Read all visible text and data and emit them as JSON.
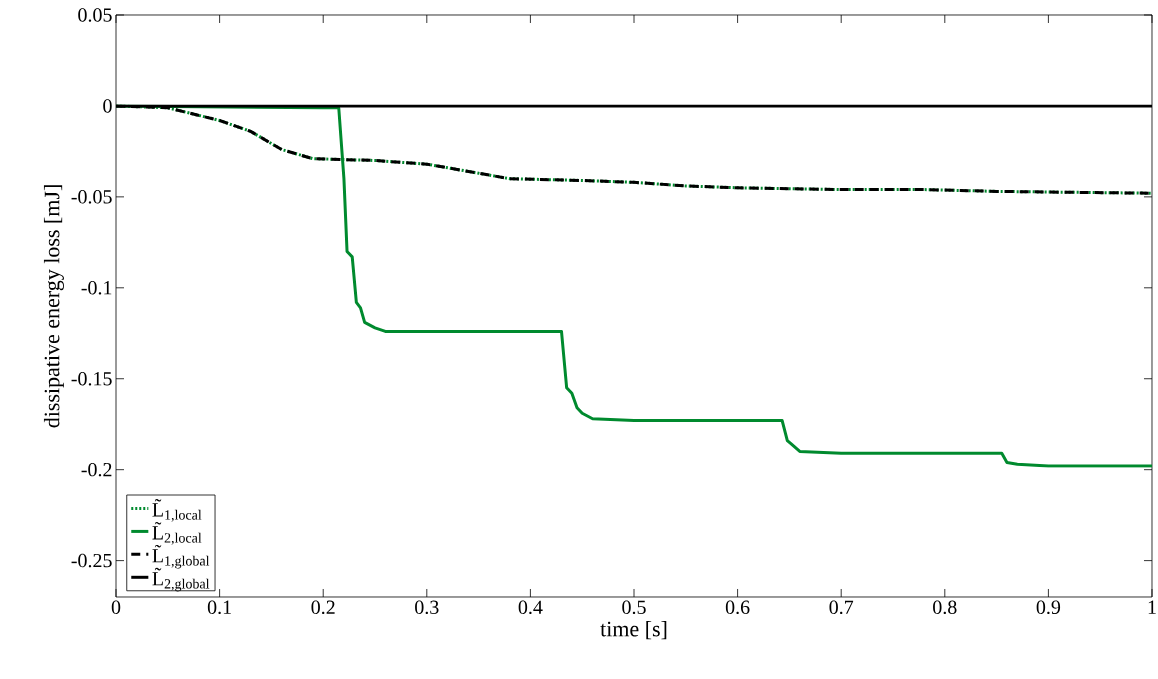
{
  "chart_data": {
    "type": "line",
    "xlabel": "time [s]",
    "ylabel": "dissipative energy loss [mJ]",
    "xlim": [
      0,
      1
    ],
    "ylim": [
      -0.27,
      0.05
    ],
    "xticks": [
      0,
      0.1,
      0.2,
      0.3,
      0.4,
      0.5,
      0.6,
      0.7,
      0.8,
      0.9,
      1
    ],
    "yticks": [
      {
        "value": -0.25,
        "label": "-0.25"
      },
      {
        "value": -0.2,
        "label": "-0.2"
      },
      {
        "value": -0.15,
        "label": "-0.15"
      },
      {
        "value": -0.1,
        "label": "-0.1"
      },
      {
        "value": -0.05,
        "label": "-0.05"
      },
      0,
      0.05
    ],
    "grid": false,
    "legend": "bottom left",
    "series": [
      {
        "name": "L̃$_{1,local}$",
        "color": "#008a2e",
        "line_style": "dotted",
        "x": [
          0,
          0.05,
          0.1,
          0.13,
          0.16,
          0.19,
          0.25,
          0.3,
          0.35,
          0.38,
          0.45,
          0.5,
          0.55,
          0.6,
          0.7,
          0.78,
          0.85,
          1
        ],
        "values": [
          0,
          -0.001,
          -0.008,
          -0.014,
          -0.024,
          -0.029,
          -0.03,
          -0.032,
          -0.037,
          -0.04,
          -0.041,
          -0.042,
          -0.044,
          -0.045,
          -0.046,
          -0.046,
          -0.047,
          -0.048
        ]
      },
      {
        "name": "L̃$_{2,local}$",
        "color": "#008a2e",
        "line_style": "solid",
        "x": [
          0,
          0.2,
          0.215,
          0.22,
          0.223,
          0.228,
          0.232,
          0.236,
          0.24,
          0.25,
          0.26,
          0.43,
          0.435,
          0.44,
          0.445,
          0.45,
          0.46,
          0.5,
          0.643,
          0.648,
          0.652,
          0.66,
          0.7,
          0.855,
          0.86,
          0.87,
          0.9,
          1
        ],
        "values": [
          0,
          -0.001,
          -0.001,
          -0.04,
          -0.08,
          -0.083,
          -0.108,
          -0.111,
          -0.119,
          -0.122,
          -0.124,
          -0.124,
          -0.155,
          -0.158,
          -0.166,
          -0.169,
          -0.172,
          -0.173,
          -0.173,
          -0.184,
          -0.186,
          -0.19,
          -0.191,
          -0.191,
          -0.196,
          -0.197,
          -0.198,
          -0.198
        ]
      },
      {
        "name": "L̃$_{1,global}$",
        "color": "#000000",
        "line_style": "dashed",
        "x": [
          0,
          0.05,
          0.1,
          0.13,
          0.16,
          0.19,
          0.25,
          0.3,
          0.35,
          0.38,
          0.45,
          0.5,
          0.55,
          0.6,
          0.7,
          0.78,
          0.85,
          1
        ],
        "values": [
          0,
          -0.001,
          -0.008,
          -0.014,
          -0.024,
          -0.029,
          -0.03,
          -0.032,
          -0.037,
          -0.04,
          -0.041,
          -0.042,
          -0.044,
          -0.045,
          -0.046,
          -0.046,
          -0.047,
          -0.048
        ]
      },
      {
        "name": "L̃$_{2,global}$",
        "color": "#000000",
        "line_style": "solid",
        "x": [
          0,
          1
        ],
        "values": [
          0,
          0
        ]
      }
    ]
  }
}
